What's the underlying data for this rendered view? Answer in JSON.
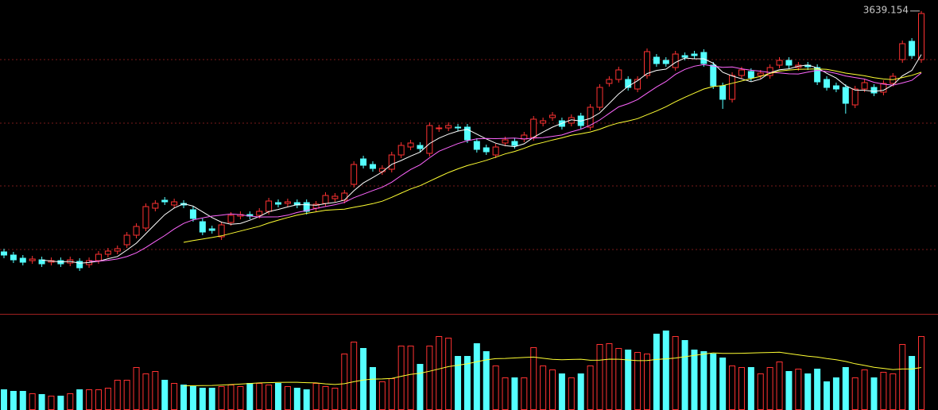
{
  "chart_data": {
    "type": "candlestick",
    "open": [
      3336,
      3332,
      3328,
      3325,
      3326,
      3323,
      3325,
      3322,
      3324,
      3320,
      3325,
      3333,
      3337,
      3345,
      3357,
      3366,
      3391,
      3401,
      3395,
      3397,
      3389,
      3374,
      3365,
      3355,
      3373,
      3381,
      3383,
      3382,
      3387,
      3398,
      3397,
      3398,
      3398,
      3391,
      3397,
      3403,
      3401,
      3421,
      3453,
      3446,
      3437,
      3440,
      3458,
      3468,
      3470,
      3460,
      3491,
      3492,
      3493,
      3493,
      3475,
      3467,
      3458,
      3473,
      3475,
      3478,
      3480,
      3498,
      3505,
      3501,
      3498,
      3507,
      3493,
      3518,
      3548,
      3553,
      3553,
      3541,
      3558,
      3581,
      3577,
      3568,
      3583,
      3585,
      3587,
      3571,
      3545,
      3528,
      3558,
      3563,
      3558,
      3558,
      3571,
      3577,
      3568,
      3571,
      3568,
      3553,
      3545,
      3543,
      3521,
      3541,
      3543,
      3537,
      3548,
      3578,
      3601,
      3578
    ],
    "high": [
      3340,
      3336,
      3332,
      3331,
      3330,
      3329,
      3329,
      3330,
      3328,
      3329,
      3337,
      3341,
      3344,
      3361,
      3372,
      3397,
      3401,
      3405,
      3403,
      3401,
      3393,
      3378,
      3369,
      3374,
      3386,
      3387,
      3387,
      3391,
      3404,
      3402,
      3403,
      3402,
      3402,
      3400,
      3411,
      3410,
      3414,
      3450,
      3457,
      3450,
      3445,
      3462,
      3474,
      3477,
      3474,
      3499,
      3496,
      3499,
      3497,
      3497,
      3479,
      3471,
      3472,
      3481,
      3479,
      3487,
      3507,
      3505,
      3512,
      3505,
      3509,
      3511,
      3522,
      3547,
      3557,
      3569,
      3557,
      3557,
      3592,
      3585,
      3581,
      3589,
      3587,
      3589,
      3591,
      3575,
      3549,
      3562,
      3569,
      3567,
      3565,
      3572,
      3581,
      3581,
      3575,
      3575,
      3572,
      3557,
      3549,
      3547,
      3545,
      3553,
      3547,
      3552,
      3561,
      3602,
      3605,
      3639.154
    ],
    "low": [
      3328,
      3322,
      3319,
      3321,
      3317,
      3319,
      3317,
      3318,
      3312,
      3316,
      3321,
      3329,
      3333,
      3341,
      3353,
      3362,
      3387,
      3395,
      3391,
      3391,
      3374,
      3357,
      3359,
      3351,
      3369,
      3377,
      3377,
      3378,
      3383,
      3392,
      3393,
      3391,
      3383,
      3387,
      3393,
      3399,
      3397,
      3417,
      3441,
      3437,
      3433,
      3436,
      3454,
      3464,
      3462,
      3456,
      3487,
      3488,
      3488,
      3473,
      3461,
      3458,
      3454,
      3469,
      3466,
      3474,
      3476,
      3494,
      3501,
      3490,
      3494,
      3491,
      3489,
      3514,
      3544,
      3549,
      3539,
      3537,
      3554,
      3569,
      3569,
      3564,
      3577,
      3579,
      3569,
      3541,
      3516,
      3524,
      3554,
      3551,
      3554,
      3554,
      3567,
      3567,
      3564,
      3565,
      3546,
      3539,
      3537,
      3510,
      3517,
      3537,
      3532,
      3533,
      3544,
      3574,
      3579,
      3574
    ],
    "close": [
      3332,
      3326,
      3323,
      3327,
      3321,
      3325,
      3321,
      3326,
      3316,
      3325,
      3333,
      3337,
      3340,
      3357,
      3368,
      3393,
      3397,
      3399,
      3399,
      3395,
      3378,
      3361,
      3363,
      3370,
      3382,
      3383,
      3381,
      3387,
      3400,
      3396,
      3399,
      3395,
      3387,
      3396,
      3407,
      3406,
      3410,
      3446,
      3445,
      3441,
      3441,
      3458,
      3470,
      3473,
      3466,
      3495,
      3492,
      3495,
      3492,
      3477,
      3465,
      3462,
      3468,
      3477,
      3470,
      3483,
      3503,
      3501,
      3508,
      3494,
      3505,
      3495,
      3518,
      3543,
      3553,
      3565,
      3543,
      3553,
      3588,
      3573,
      3573,
      3585,
      3581,
      3583,
      3573,
      3545,
      3528,
      3558,
      3565,
      3555,
      3561,
      3568,
      3577,
      3571,
      3571,
      3569,
      3550,
      3543,
      3541,
      3523,
      3541,
      3549,
      3536,
      3548,
      3557,
      3598,
      3583,
      3636
    ],
    "volume": [
      26,
      24,
      24,
      21,
      20,
      18,
      18,
      21,
      26,
      26,
      26,
      28,
      38,
      38,
      54,
      46,
      49,
      38,
      34,
      32,
      30,
      28,
      28,
      30,
      32,
      30,
      34,
      34,
      32,
      34,
      30,
      28,
      26,
      34,
      30,
      28,
      71,
      86,
      78,
      54,
      36,
      40,
      81,
      81,
      58,
      81,
      93,
      91,
      68,
      68,
      84,
      74,
      56,
      41,
      41,
      41,
      79,
      56,
      51,
      46,
      41,
      46,
      56,
      83,
      84,
      78,
      76,
      73,
      71,
      96,
      100,
      93,
      88,
      76,
      74,
      71,
      66,
      56,
      54,
      54,
      46,
      54,
      61,
      49,
      52,
      46,
      52,
      36,
      41,
      54,
      41,
      51,
      41,
      48,
      46,
      83,
      68,
      93
    ],
    "ylim": [
      3258,
      3653
    ],
    "volume_ylim": [
      0,
      120
    ],
    "up_color": "#ff3232",
    "down_color": "#54ffff",
    "ma": [
      {
        "period": 5,
        "color": "#ffffff"
      },
      {
        "period": 10,
        "color": "#ff66ff"
      },
      {
        "period": 20,
        "color": "#ffff33"
      }
    ],
    "volume_ma": {
      "period": 20,
      "color": "#ffff33"
    }
  }
}
